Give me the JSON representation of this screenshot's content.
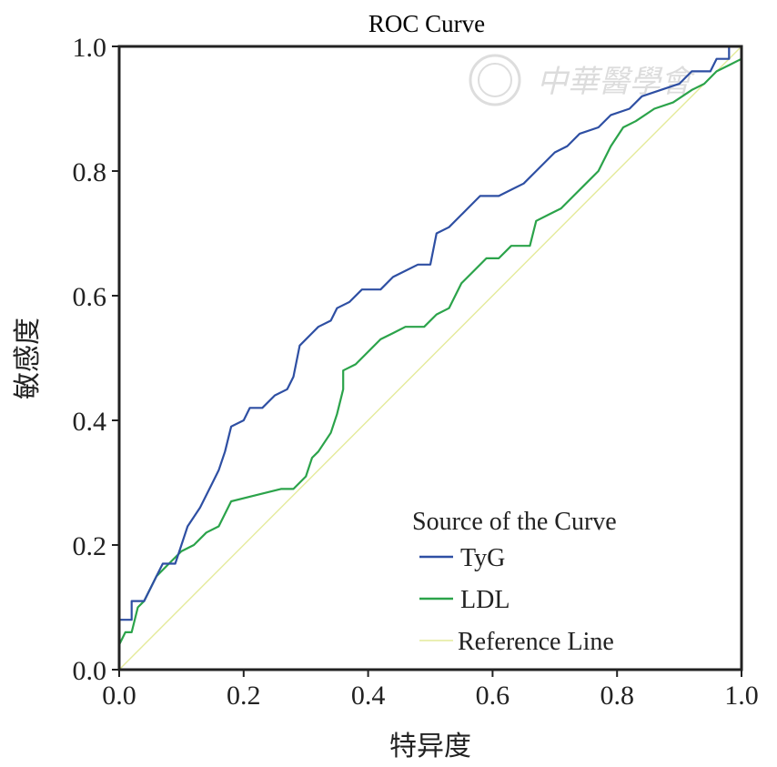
{
  "chart_data": {
    "type": "line",
    "title": "ROC Curve",
    "xlabel": "特异度",
    "ylabel": "敏感度",
    "xlim": [
      0,
      1
    ],
    "ylim": [
      0,
      1
    ],
    "x_ticks": [
      "0.0",
      "0.2",
      "0.4",
      "0.6",
      "0.8",
      "1.0"
    ],
    "y_ticks": [
      "0.0",
      "0.2",
      "0.4",
      "0.6",
      "0.8",
      "1.0"
    ],
    "legend": {
      "title": "Source of the Curve",
      "position": "bottom-right"
    },
    "series": [
      {
        "name": "TyG",
        "color": "#2e4fa3",
        "points": [
          [
            0.0,
            0.0
          ],
          [
            0.0,
            0.08
          ],
          [
            0.02,
            0.08
          ],
          [
            0.02,
            0.11
          ],
          [
            0.04,
            0.11
          ],
          [
            0.05,
            0.13
          ],
          [
            0.06,
            0.15
          ],
          [
            0.07,
            0.17
          ],
          [
            0.09,
            0.17
          ],
          [
            0.1,
            0.2
          ],
          [
            0.11,
            0.23
          ],
          [
            0.13,
            0.26
          ],
          [
            0.15,
            0.3
          ],
          [
            0.16,
            0.32
          ],
          [
            0.17,
            0.35
          ],
          [
            0.18,
            0.39
          ],
          [
            0.2,
            0.4
          ],
          [
            0.21,
            0.42
          ],
          [
            0.23,
            0.42
          ],
          [
            0.25,
            0.44
          ],
          [
            0.27,
            0.45
          ],
          [
            0.28,
            0.47
          ],
          [
            0.29,
            0.52
          ],
          [
            0.31,
            0.54
          ],
          [
            0.32,
            0.55
          ],
          [
            0.34,
            0.56
          ],
          [
            0.35,
            0.58
          ],
          [
            0.37,
            0.59
          ],
          [
            0.39,
            0.61
          ],
          [
            0.42,
            0.61
          ],
          [
            0.44,
            0.63
          ],
          [
            0.46,
            0.64
          ],
          [
            0.48,
            0.65
          ],
          [
            0.5,
            0.65
          ],
          [
            0.51,
            0.7
          ],
          [
            0.53,
            0.71
          ],
          [
            0.56,
            0.74
          ],
          [
            0.58,
            0.76
          ],
          [
            0.61,
            0.76
          ],
          [
            0.63,
            0.77
          ],
          [
            0.65,
            0.78
          ],
          [
            0.67,
            0.8
          ],
          [
            0.7,
            0.83
          ],
          [
            0.72,
            0.84
          ],
          [
            0.74,
            0.86
          ],
          [
            0.77,
            0.87
          ],
          [
            0.79,
            0.89
          ],
          [
            0.82,
            0.9
          ],
          [
            0.84,
            0.92
          ],
          [
            0.87,
            0.93
          ],
          [
            0.9,
            0.94
          ],
          [
            0.92,
            0.96
          ],
          [
            0.95,
            0.96
          ],
          [
            0.96,
            0.98
          ],
          [
            0.98,
            0.98
          ],
          [
            0.98,
            1.0
          ],
          [
            1.0,
            1.0
          ]
        ]
      },
      {
        "name": "LDL",
        "color": "#2ba34a",
        "points": [
          [
            0.0,
            0.0
          ],
          [
            0.0,
            0.04
          ],
          [
            0.01,
            0.06
          ],
          [
            0.02,
            0.06
          ],
          [
            0.03,
            0.1
          ],
          [
            0.04,
            0.11
          ],
          [
            0.06,
            0.15
          ],
          [
            0.07,
            0.16
          ],
          [
            0.08,
            0.17
          ],
          [
            0.1,
            0.19
          ],
          [
            0.12,
            0.2
          ],
          [
            0.14,
            0.22
          ],
          [
            0.16,
            0.23
          ],
          [
            0.18,
            0.27
          ],
          [
            0.22,
            0.28
          ],
          [
            0.26,
            0.29
          ],
          [
            0.28,
            0.29
          ],
          [
            0.3,
            0.31
          ],
          [
            0.31,
            0.34
          ],
          [
            0.32,
            0.35
          ],
          [
            0.34,
            0.38
          ],
          [
            0.35,
            0.41
          ],
          [
            0.36,
            0.45
          ],
          [
            0.36,
            0.48
          ],
          [
            0.38,
            0.49
          ],
          [
            0.4,
            0.51
          ],
          [
            0.42,
            0.53
          ],
          [
            0.44,
            0.54
          ],
          [
            0.46,
            0.55
          ],
          [
            0.49,
            0.55
          ],
          [
            0.51,
            0.57
          ],
          [
            0.53,
            0.58
          ],
          [
            0.55,
            0.62
          ],
          [
            0.57,
            0.64
          ],
          [
            0.59,
            0.66
          ],
          [
            0.61,
            0.66
          ],
          [
            0.63,
            0.68
          ],
          [
            0.66,
            0.68
          ],
          [
            0.67,
            0.72
          ],
          [
            0.69,
            0.73
          ],
          [
            0.71,
            0.74
          ],
          [
            0.73,
            0.76
          ],
          [
            0.75,
            0.78
          ],
          [
            0.77,
            0.8
          ],
          [
            0.79,
            0.84
          ],
          [
            0.81,
            0.87
          ],
          [
            0.83,
            0.88
          ],
          [
            0.86,
            0.9
          ],
          [
            0.89,
            0.91
          ],
          [
            0.92,
            0.93
          ],
          [
            0.94,
            0.94
          ],
          [
            0.96,
            0.96
          ],
          [
            0.98,
            0.97
          ],
          [
            1.0,
            0.98
          ]
        ]
      },
      {
        "name": "Reference Line",
        "color": "#e4ea9a",
        "points": [
          [
            0.0,
            0.0
          ],
          [
            1.0,
            1.0
          ]
        ]
      }
    ]
  },
  "watermark": "中華醫學會"
}
